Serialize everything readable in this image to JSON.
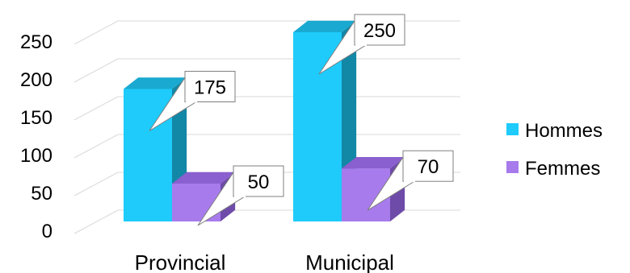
{
  "chart_data": {
    "type": "bar",
    "subtype": "3d-clustered-column",
    "categories": [
      "Provincial",
      "Municipal"
    ],
    "series": [
      {
        "name": "Hommes",
        "values": [
          175,
          250
        ],
        "color": "#1ECBFA",
        "side_color": "#1287A6",
        "top_color": "#1AA9D0"
      },
      {
        "name": "Femmes",
        "values": [
          50,
          70
        ],
        "color": "#A77BEC",
        "side_color": "#6E4BA8",
        "top_color": "#8A5FCF"
      }
    ],
    "yticks": [
      "0",
      "50",
      "100",
      "150",
      "200",
      "250"
    ],
    "ylim": [
      0,
      250
    ],
    "grid": true,
    "legend_position": "right",
    "data_labels": true,
    "colors": {
      "grid": "#D9D9D9",
      "callout_border": "#7F7F7F"
    }
  }
}
